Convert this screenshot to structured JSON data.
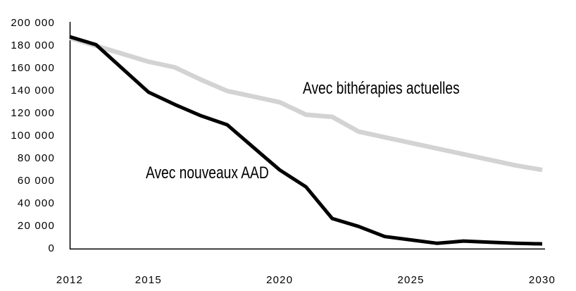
{
  "chart_data": {
    "type": "line",
    "title": "",
    "xlabel": "",
    "ylabel": "",
    "grid": false,
    "legend_position": "inline-labels",
    "background_color": "#ffffff",
    "axis_color": "#000000",
    "x_range": [
      2012,
      2030
    ],
    "y_range": [
      0,
      200000
    ],
    "x_tick_labels": [
      "2012",
      "2015",
      "2020",
      "2025",
      "2030"
    ],
    "x_tick_years": [
      2012,
      2015,
      2020,
      2025,
      2030
    ],
    "y_tick_labels": [
      "0",
      "20 000",
      "40 000",
      "60 000",
      "80 000",
      "100 000",
      "120 000",
      "140 000",
      "160 000",
      "180 000",
      "200 000"
    ],
    "y_tick_values": [
      0,
      20000,
      40000,
      60000,
      80000,
      100000,
      120000,
      140000,
      160000,
      180000,
      200000
    ],
    "years": [
      2012,
      2013,
      2014,
      2015,
      2016,
      2017,
      2018,
      2019,
      2020,
      2021,
      2022,
      2023,
      2024,
      2025,
      2026,
      2027,
      2028,
      2029,
      2030
    ],
    "series": [
      {
        "name": "Avec bithérapies actuelles",
        "color": "#d3d3d3",
        "stroke_width": 6.5,
        "values": [
          187000,
          180000,
          173000,
          166000,
          161000,
          150000,
          140000,
          135000,
          130000,
          119000,
          117000,
          104000,
          99000,
          94000,
          89000,
          84000,
          79000,
          74000,
          70000
        ]
      },
      {
        "name": "Avec nouveaux AAD",
        "color": "#000000",
        "stroke_width": 5,
        "values": [
          188000,
          181000,
          160000,
          139000,
          128000,
          118000,
          110000,
          90000,
          70000,
          55000,
          27000,
          20000,
          11000,
          8000,
          5000,
          7000,
          6000,
          5000,
          4500
        ]
      }
    ]
  }
}
